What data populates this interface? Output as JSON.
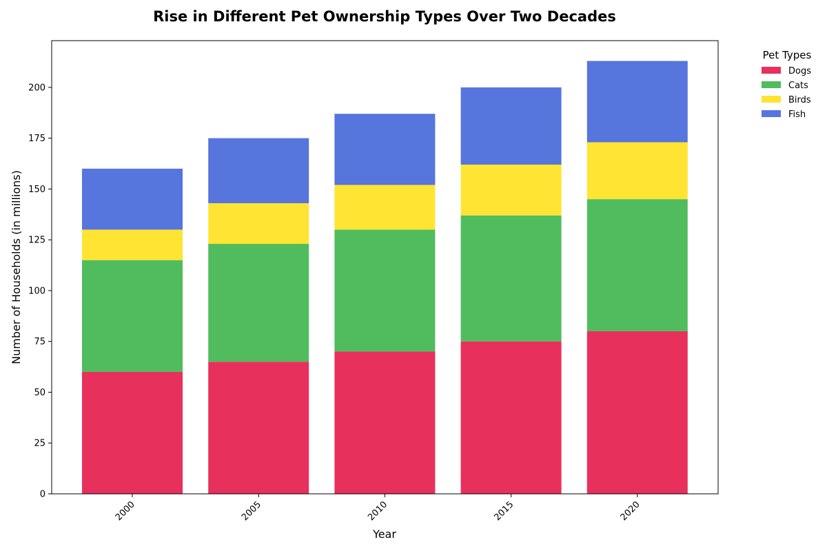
{
  "chart_data": {
    "type": "bar",
    "stacked": true,
    "title": "Rise in Different Pet Ownership Types Over Two Decades",
    "xlabel": "Year",
    "ylabel": "Number of Households (in millions)",
    "categories": [
      "2000",
      "2005",
      "2010",
      "2015",
      "2020"
    ],
    "series": [
      {
        "name": "Dogs",
        "color": "#e8305c",
        "values": [
          60,
          65,
          70,
          75,
          80
        ]
      },
      {
        "name": "Cats",
        "color": "#50bc5e",
        "values": [
          55,
          58,
          60,
          62,
          65
        ]
      },
      {
        "name": "Birds",
        "color": "#ffe433",
        "values": [
          15,
          20,
          22,
          25,
          28
        ]
      },
      {
        "name": "Fish",
        "color": "#5675dd",
        "values": [
          30,
          32,
          35,
          38,
          40
        ]
      }
    ],
    "ylim": [
      0,
      223
    ],
    "yticks": [
      0,
      25,
      50,
      75,
      100,
      125,
      150,
      175,
      200
    ],
    "grid": false,
    "legend": {
      "title": "Pet Types",
      "placement": "outside-top-right"
    }
  }
}
